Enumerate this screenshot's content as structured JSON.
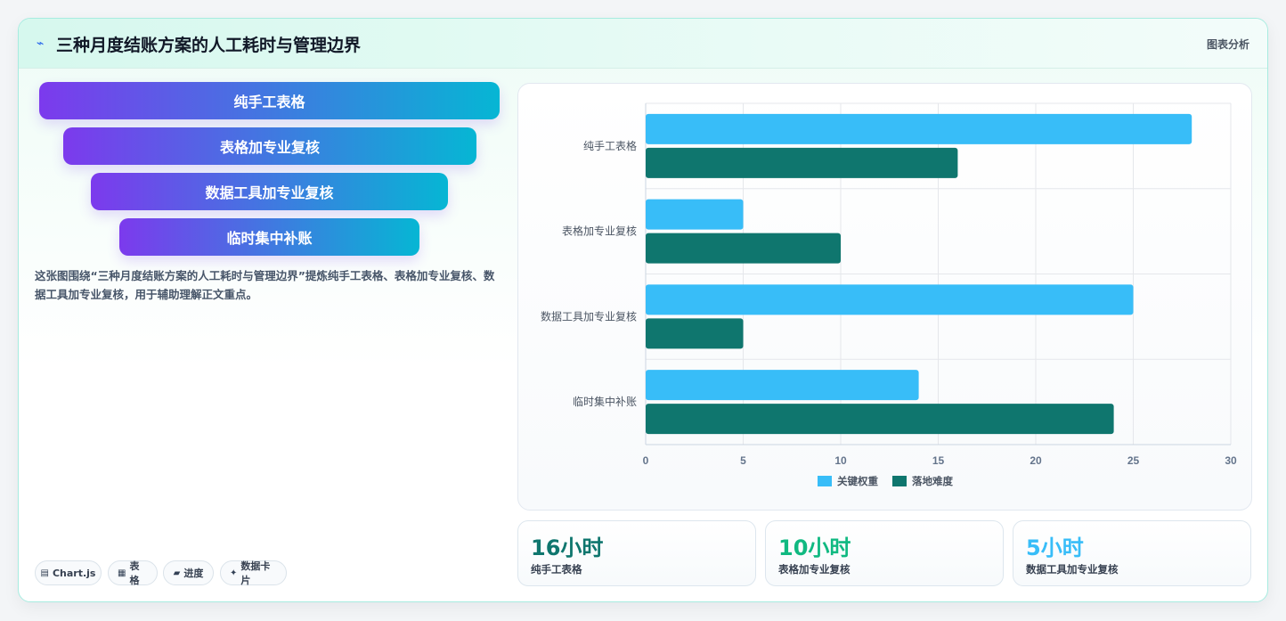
{
  "header": {
    "icon": "chart-icon",
    "title": "三种月度结账方案的人工耗时与管理边界",
    "meta": "图表分析"
  },
  "funnel": [
    {
      "label": "纯手工表格"
    },
    {
      "label": "表格加专业复核"
    },
    {
      "label": "数据工具加专业复核"
    },
    {
      "label": "临时集中补账"
    }
  ],
  "description": "这张图围绕“三种月度结账方案的人工耗时与管理边界”提炼纯手工表格、表格加专业复核、数据工具加专业复核，用于辅助理解正文重点。",
  "chips": [
    {
      "icon": "▤",
      "label": "Chart.js"
    },
    {
      "icon": "▦",
      "label": "表格"
    },
    {
      "icon": "▰",
      "label": "进度"
    },
    {
      "icon": "✦",
      "label": "数据卡片"
    }
  ],
  "chart_data": {
    "type": "bar",
    "orientation": "horizontal",
    "categories": [
      "纯手工表格",
      "表格加专业复核",
      "数据工具加专业复核",
      "临时集中补账"
    ],
    "series": [
      {
        "name": "关键权重",
        "color": "#38bdf8",
        "values": [
          28,
          5,
          25,
          14
        ]
      },
      {
        "name": "落地难度",
        "color": "#0f766e",
        "values": [
          16,
          10,
          5,
          24
        ]
      }
    ],
    "xlim": [
      0,
      30
    ],
    "x_ticks": [
      "0",
      "5",
      "10",
      "15",
      "20",
      "25",
      "30"
    ],
    "grid": true,
    "legend_position": "bottom"
  },
  "kpis": [
    {
      "value": "16小时",
      "label": "纯手工表格",
      "color": "#0f766e"
    },
    {
      "value": "10小时",
      "label": "表格加专业复核",
      "color": "#10b981"
    },
    {
      "value": "5小时",
      "label": "数据工具加专业复核",
      "color": "#38bdf8"
    }
  ]
}
